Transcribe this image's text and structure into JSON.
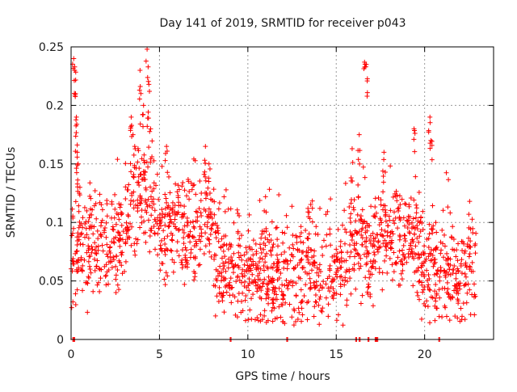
{
  "chart_data": {
    "type": "scatter",
    "title": "Day 141 of 2019, SRMTID for receiver p043",
    "xlabel": "GPS time / hours",
    "ylabel": "SRMTID / TECUs",
    "xlim": [
      0,
      23.9
    ],
    "ylim": [
      0,
      0.25
    ],
    "x_ticks": [
      0,
      5,
      10,
      15,
      20
    ],
    "x_tick_labels": [
      "0",
      "5",
      "10",
      "15",
      "20"
    ],
    "y_ticks": [
      0,
      0.05,
      0.1,
      0.15,
      0.2,
      0.25
    ],
    "y_tick_labels": [
      "0",
      "0.05",
      "0.1",
      "0.15",
      "0.2",
      "0.25"
    ],
    "grid": true,
    "marker": "plus",
    "series_color": "#ff0000",
    "trend": [
      [
        0.0,
        0.072
      ],
      [
        0.5,
        0.075
      ],
      [
        1.0,
        0.08
      ],
      [
        1.5,
        0.082
      ],
      [
        2.0,
        0.08
      ],
      [
        2.5,
        0.082
      ],
      [
        3.0,
        0.09
      ],
      [
        3.5,
        0.115
      ],
      [
        4.0,
        0.13
      ],
      [
        4.5,
        0.115
      ],
      [
        5.0,
        0.09
      ],
      [
        5.5,
        0.1
      ],
      [
        6.0,
        0.11
      ],
      [
        6.5,
        0.09
      ],
      [
        7.0,
        0.085
      ],
      [
        7.5,
        0.105
      ],
      [
        8.0,
        0.09
      ],
      [
        8.5,
        0.07
      ],
      [
        9.0,
        0.065
      ],
      [
        9.5,
        0.06
      ],
      [
        10.0,
        0.055
      ],
      [
        10.5,
        0.05
      ],
      [
        11.0,
        0.055
      ],
      [
        11.5,
        0.05
      ],
      [
        12.0,
        0.055
      ],
      [
        12.5,
        0.06
      ],
      [
        13.0,
        0.06
      ],
      [
        13.5,
        0.06
      ],
      [
        14.0,
        0.055
      ],
      [
        14.5,
        0.06
      ],
      [
        15.0,
        0.06
      ],
      [
        15.5,
        0.065
      ],
      [
        16.0,
        0.08
      ],
      [
        16.5,
        0.085
      ],
      [
        17.0,
        0.075
      ],
      [
        17.5,
        0.085
      ],
      [
        18.0,
        0.09
      ],
      [
        18.5,
        0.085
      ],
      [
        19.0,
        0.08
      ],
      [
        19.5,
        0.085
      ],
      [
        20.0,
        0.07
      ],
      [
        20.5,
        0.065
      ],
      [
        21.0,
        0.055
      ],
      [
        21.5,
        0.05
      ],
      [
        22.0,
        0.05
      ],
      [
        22.5,
        0.06
      ],
      [
        23.0,
        0.06
      ]
    ],
    "peaks": [
      {
        "x": 0.15,
        "y": 0.24
      },
      {
        "x": 0.2,
        "y": 0.23
      },
      {
        "x": 0.25,
        "y": 0.21
      },
      {
        "x": 0.3,
        "y": 0.19
      },
      {
        "x": 0.35,
        "y": 0.16
      },
      {
        "x": 0.4,
        "y": 0.15
      },
      {
        "x": 0.5,
        "y": 0.13
      },
      {
        "x": 3.4,
        "y": 0.19
      },
      {
        "x": 3.6,
        "y": 0.165
      },
      {
        "x": 3.9,
        "y": 0.23
      },
      {
        "x": 4.1,
        "y": 0.2
      },
      {
        "x": 4.3,
        "y": 0.248
      },
      {
        "x": 4.4,
        "y": 0.218
      },
      {
        "x": 4.5,
        "y": 0.18
      },
      {
        "x": 5.4,
        "y": 0.165
      },
      {
        "x": 7.6,
        "y": 0.165
      },
      {
        "x": 7.8,
        "y": 0.15
      },
      {
        "x": 11.0,
        "y": 0.122
      },
      {
        "x": 13.4,
        "y": 0.112
      },
      {
        "x": 15.9,
        "y": 0.163
      },
      {
        "x": 16.3,
        "y": 0.175
      },
      {
        "x": 16.6,
        "y": 0.237
      },
      {
        "x": 16.7,
        "y": 0.235
      },
      {
        "x": 17.7,
        "y": 0.16
      },
      {
        "x": 19.4,
        "y": 0.18
      },
      {
        "x": 20.3,
        "y": 0.19
      },
      {
        "x": 20.35,
        "y": 0.17
      },
      {
        "x": 22.5,
        "y": 0.107
      }
    ],
    "zero_points": [
      0.1,
      0.15,
      9.0,
      12.2,
      16.1,
      16.3,
      16.8,
      17.2,
      17.3,
      20.8
    ],
    "samples": 1700,
    "scatter_spread": 0.022
  }
}
